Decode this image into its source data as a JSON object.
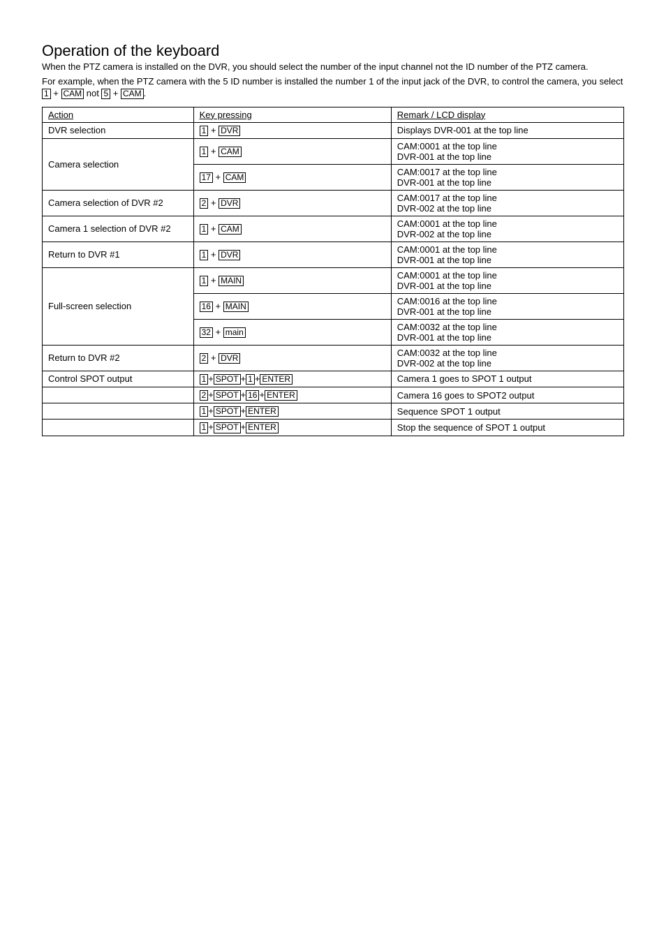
{
  "title": "Operation of the keyboard",
  "intro1": "When the PTZ camera is installed on the DVR, you should select the number of the input channel not the ID number of the PTZ camera.",
  "intro2_a": "For example, when the PTZ camera with the 5 ID number is installed the number 1 of the input jack of the DVR, to control the camera, you select ",
  "intro2_k1": "1",
  "intro2_plus1": " + ",
  "intro2_k2": "CAM",
  "intro2_not": " not ",
  "intro2_k3": "5",
  "intro2_plus2": " + ",
  "intro2_k4": "CAM",
  "intro2_end": ".",
  "headers": {
    "c1": "Action",
    "c2": "Key pressing",
    "c3": "Remark / LCD display"
  },
  "rows": {
    "r1": {
      "action": "DVR selection",
      "remark": "Displays DVR-001 at the top line"
    },
    "r2": {
      "remark": "CAM:0001 at the top line\nDVR-001 at the top line"
    },
    "r3": {
      "action": "Camera selection",
      "remark": "CAM:0017 at the top line\nDVR-001 at the top line"
    },
    "r4": {
      "action": "Camera selection of DVR #2",
      "remark": "CAM:0017 at the top line\nDVR-002 at the top line"
    },
    "r5": {
      "action": "Camera 1 selection of DVR #2",
      "remark": "CAM:0001 at the top line\nDVR-002 at the top line"
    },
    "r6": {
      "action": "Return to DVR #1",
      "remark": "CAM:0001 at the top line\nDVR-001 at the top line"
    },
    "r7": {
      "remark": "CAM:0001 at the top line\nDVR-001 at the top line"
    },
    "r8": {
      "action": "Full-screen selection",
      "remark": "CAM:0016 at the top line\nDVR-001 at the top line"
    },
    "r9": {
      "remark": "CAM:0032 at the top line\nDVR-001 at the top line"
    },
    "r10": {
      "action": "Return to DVR #2",
      "remark": "CAM:0032 at the top line\nDVR-002 at the top line"
    },
    "r11": {
      "action": "Control SPOT output",
      "remark": "Camera 1 goes to SPOT 1 output"
    },
    "r12": {
      "action": "",
      "remark": "Camera 16 goes to SPOT2 output"
    },
    "r13": {
      "action": "",
      "remark": "Sequence SPOT 1 output"
    },
    "r14": {
      "action": "",
      "remark": "Stop the sequence of SPOT 1 output"
    }
  },
  "kp": {
    "r1": {
      "k1": "1",
      "p1": " + ",
      "k2": "DVR"
    },
    "r2": {
      "k1": "1",
      "p1": " + ",
      "k2": "CAM"
    },
    "r3": {
      "k1": "17",
      "p1": " + ",
      "k2": "CAM"
    },
    "r4": {
      "k1": "2",
      "p1": " + ",
      "k2": "DVR"
    },
    "r5": {
      "k1": "1",
      "p1": " + ",
      "k2": "CAM"
    },
    "r6": {
      "k1": "1",
      "p1": " + ",
      "k2": "DVR"
    },
    "r7": {
      "k1": "1",
      "p1": " + ",
      "k2": "MAIN"
    },
    "r8": {
      "k1": "16",
      "p1": " + ",
      "k2": "MAIN"
    },
    "r9": {
      "k1": "32",
      "p1": " + ",
      "k2": "main"
    },
    "r10": {
      "k1": "2",
      "p1": " + ",
      "k2": "DVR"
    },
    "r11": {
      "k1": "1",
      "p1": "+",
      "k2": "SPOT",
      "p2": "+",
      "k3": "1",
      "p3": "+",
      "k4": "ENTER"
    },
    "r12": {
      "k1": "2",
      "p1": "+",
      "k2": "SPOT",
      "p2": "+",
      "k3": "16",
      "p3": "+",
      "k4": "ENTER"
    },
    "r13": {
      "k1": "1",
      "p1": "+",
      "k2": "SPOT",
      "p2": "+",
      "k3": "ENTER"
    },
    "r14": {
      "k1": "1",
      "p1": "+",
      "k2": "SPOT",
      "p2": "+",
      "k3": "ENTER"
    }
  }
}
